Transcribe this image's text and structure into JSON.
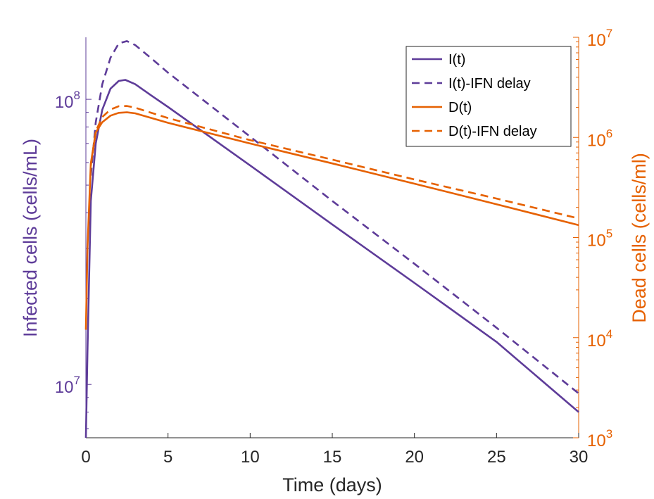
{
  "chart_data": {
    "type": "line",
    "xlabel": "Time (days)",
    "ylabel_left": "Infected cells (cells/mL)",
    "ylabel_right": "Dead cells (cells/ml)",
    "xlim": [
      0,
      30
    ],
    "x_ticks": [
      0,
      5,
      10,
      15,
      20,
      25,
      30
    ],
    "ylim_left": [
      6500000,
      165000000
    ],
    "ylim_right": [
      1000,
      10000000
    ],
    "yscale_left": "log",
    "yscale_right": "log",
    "y_ticks_left": [
      {
        "base": "10",
        "exp": "7",
        "value": 10000000
      },
      {
        "base": "10",
        "exp": "8",
        "value": 100000000
      }
    ],
    "y_ticks_right": [
      {
        "base": "10",
        "exp": "3",
        "value": 1000
      },
      {
        "base": "10",
        "exp": "4",
        "value": 10000
      },
      {
        "base": "10",
        "exp": "5",
        "value": 100000
      },
      {
        "base": "10",
        "exp": "6",
        "value": 1000000
      },
      {
        "base": "10",
        "exp": "7",
        "value": 10000000
      }
    ],
    "grid": false,
    "legend_position": "top-right",
    "colors": {
      "infected": "#5e3c99",
      "dead": "#e66101",
      "left_axis": "#5e3c99",
      "right_axis": "#e66101"
    },
    "series": [
      {
        "name": "I(t)",
        "axis": "left",
        "color": "#5e3c99",
        "dash": "solid",
        "x": [
          0,
          0.1,
          0.3,
          0.6,
          1,
          1.5,
          2,
          2.4,
          3,
          4,
          5,
          10,
          15,
          20,
          25,
          30
        ],
        "y": [
          6500000,
          13200000,
          44000000,
          70000000,
          92000000,
          109000000,
          116000000,
          117000000,
          113000000,
          103000000,
          94000000,
          58600000,
          36400000,
          22700000,
          14100000,
          8000000
        ]
      },
      {
        "name": "I(t)-IFN delay",
        "axis": "left",
        "color": "#5e3c99",
        "dash": "dashed",
        "x": [
          0.3,
          0.6,
          1,
          1.5,
          2,
          2.5,
          3,
          4,
          5,
          10,
          15,
          20,
          25,
          30
        ],
        "y": [
          54000000,
          83000000,
          113000000,
          140000000,
          157000000,
          160000000,
          155000000,
          139000000,
          124000000,
          74000000,
          44000000,
          26500000,
          15800000,
          9300000
        ]
      },
      {
        "name": "D(t)",
        "axis": "right",
        "color": "#e66101",
        "dash": "solid",
        "x": [
          0,
          0.1,
          0.3,
          0.6,
          1,
          1.5,
          2,
          2.5,
          3,
          5,
          10,
          15,
          20,
          25,
          30
        ],
        "y": [
          12000,
          80000,
          550000,
          1120000,
          1420000,
          1650000,
          1760000,
          1780000,
          1740000,
          1400000,
          870000,
          550000,
          345000,
          215000,
          133000
        ]
      },
      {
        "name": "D(t)-IFN delay",
        "axis": "right",
        "color": "#e66101",
        "dash": "dashed",
        "x": [
          0.3,
          0.6,
          1,
          1.5,
          2,
          2.5,
          3,
          5,
          10,
          15,
          20,
          25,
          30
        ],
        "y": [
          520000,
          1150000,
          1600000,
          1900000,
          2050000,
          2060000,
          1980000,
          1560000,
          940000,
          600000,
          380000,
          245000,
          155000
        ]
      }
    ]
  }
}
